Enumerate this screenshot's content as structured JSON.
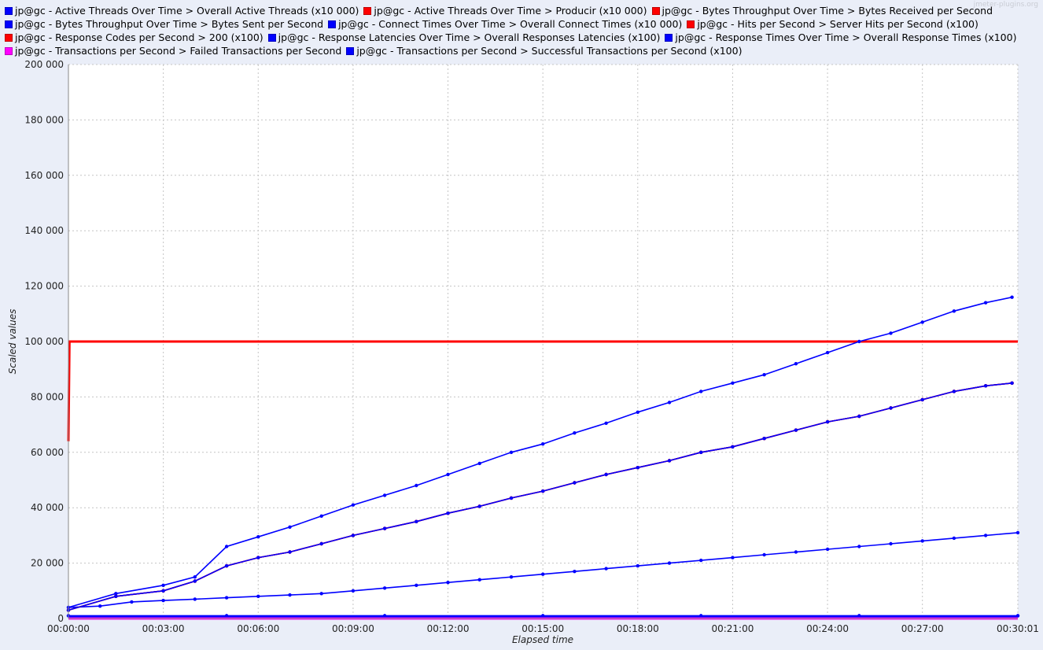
{
  "watermark": "jmeter-plugins.org",
  "chart_data": {
    "type": "line",
    "title": "",
    "xlabel": "Elapsed time",
    "ylabel": "Scaled values",
    "ylim": [
      0,
      200000
    ],
    "xlim_seconds": [
      0,
      1801
    ],
    "grid": true,
    "legend_position": "top",
    "y_ticks": [
      "0",
      "20 000",
      "40 000",
      "60 000",
      "80 000",
      "100 000",
      "120 000",
      "140 000",
      "160 000",
      "180 000",
      "200 000"
    ],
    "x_ticks": [
      "00:00:00",
      "00:03:00",
      "00:06:00",
      "00:09:00",
      "00:12:00",
      "00:15:00",
      "00:18:00",
      "00:21:00",
      "00:24:00",
      "00:27:00",
      "00:30:01"
    ],
    "x_tick_seconds": [
      0,
      180,
      360,
      540,
      720,
      900,
      1080,
      1260,
      1440,
      1620,
      1801
    ],
    "series": [
      {
        "name": "jp@gc - Active Threads Over Time > Overall Active Threads (x10 000)",
        "color": "#0000ff",
        "x": [
          0,
          60,
          120,
          180,
          240,
          300,
          360,
          420,
          480,
          540,
          600,
          660,
          720,
          780,
          840,
          900,
          960,
          1020,
          1080,
          1140,
          1200,
          1260,
          1320,
          1380,
          1440,
          1500,
          1560,
          1620,
          1680,
          1740,
          1801
        ],
        "y": [
          4000,
          4500,
          6000,
          6500,
          7000,
          7500,
          8000,
          8500,
          9000,
          10000,
          11000,
          12000,
          13000,
          14000,
          15000,
          16000,
          17000,
          18000,
          19000,
          20000,
          21000,
          22000,
          23000,
          24000,
          25000,
          26000,
          27000,
          28000,
          29000,
          30000,
          31000
        ]
      },
      {
        "name": "jp@gc - Active Threads Over Time > Producir (x10 000)",
        "color": "#ff0000",
        "x": [
          0,
          2,
          1801
        ],
        "y": [
          64000,
          100000,
          100000
        ]
      },
      {
        "name": "jp@gc - Bytes Throughput Over Time > Bytes Received per Second",
        "color": "#ff0000",
        "x": [
          0,
          90,
          180,
          240,
          300,
          360,
          420,
          480,
          540,
          600,
          660,
          720,
          780,
          840,
          900,
          960,
          1020,
          1080,
          1140,
          1200,
          1260,
          1320,
          1380,
          1440,
          1500,
          1560,
          1620,
          1680,
          1740,
          1790
        ],
        "y": [
          3000,
          8000,
          10000,
          13500,
          19000,
          22000,
          24000,
          27000,
          30000,
          32500,
          35000,
          38000,
          40500,
          43500,
          46000,
          49000,
          52000,
          54500,
          57000,
          60000,
          62000,
          65000,
          68000,
          71000,
          73000,
          76000,
          79000,
          82000,
          84000,
          85000
        ]
      },
      {
        "name": "jp@gc - Bytes Throughput Over Time > Bytes Sent per Second",
        "color": "#0000ff",
        "x": [
          0,
          90,
          180,
          240,
          300,
          360,
          420,
          480,
          540,
          600,
          660,
          720,
          780,
          840,
          900,
          960,
          1020,
          1080,
          1140,
          1200,
          1260,
          1320,
          1380,
          1440,
          1500,
          1560,
          1620,
          1680,
          1740,
          1790
        ],
        "y": [
          4000,
          9000,
          12000,
          15000,
          26000,
          29500,
          33000,
          37000,
          41000,
          44500,
          48000,
          52000,
          56000,
          60000,
          63000,
          67000,
          70500,
          74500,
          78000,
          82000,
          85000,
          88000,
          92000,
          96000,
          100000,
          103000,
          107000,
          111000,
          114000,
          116000
        ]
      },
      {
        "name": "jp@gc - Connect Times Over Time > Overall Connect Times (x10 000)",
        "color": "#0000ff",
        "x": [
          0,
          900,
          1801
        ],
        "y": [
          500,
          500,
          500
        ]
      },
      {
        "name": "jp@gc - Hits per Second > Server Hits per Second (x100)",
        "color": "#ff0000",
        "x": [
          0,
          90,
          180,
          240,
          300,
          360,
          420,
          480,
          540,
          600,
          660,
          720,
          780,
          840,
          900,
          960,
          1020,
          1080,
          1140,
          1200,
          1260,
          1320,
          1380,
          1440,
          1500,
          1560,
          1620,
          1680,
          1740,
          1790
        ],
        "y": [
          3000,
          8000,
          10000,
          13500,
          19000,
          22000,
          24000,
          27000,
          30000,
          32500,
          35000,
          38000,
          40500,
          43500,
          46000,
          49000,
          52000,
          54500,
          57000,
          60000,
          62000,
          65000,
          68000,
          71000,
          73000,
          76000,
          79000,
          82000,
          84000,
          85000
        ]
      },
      {
        "name": "jp@gc - Response Codes per Second > 200 (x100)",
        "color": "#ff0000",
        "x": [
          0,
          90,
          180,
          240,
          300,
          360,
          420,
          480,
          540,
          600,
          660,
          720,
          780,
          840,
          900,
          960,
          1020,
          1080,
          1140,
          1200,
          1260,
          1320,
          1380,
          1440,
          1500,
          1560,
          1620,
          1680,
          1740,
          1790
        ],
        "y": [
          3000,
          8000,
          10000,
          13500,
          19000,
          22000,
          24000,
          27000,
          30000,
          32500,
          35000,
          38000,
          40500,
          43500,
          46000,
          49000,
          52000,
          54500,
          57000,
          60000,
          62000,
          65000,
          68000,
          71000,
          73000,
          76000,
          79000,
          82000,
          84000,
          85000
        ]
      },
      {
        "name": "jp@gc - Response Latencies Over Time > Overall Responses Latencies (x100)",
        "color": "#0000ff",
        "x": [
          0,
          300,
          600,
          900,
          1200,
          1500,
          1801
        ],
        "y": [
          1000,
          1000,
          1000,
          1000,
          1000,
          1000,
          1000
        ]
      },
      {
        "name": "jp@gc - Response Times Over Time > Overall Response Times (x100)",
        "color": "#0000ff",
        "x": [
          0,
          300,
          600,
          900,
          1200,
          1500,
          1801
        ],
        "y": [
          1000,
          1000,
          1000,
          1000,
          1000,
          1000,
          1000
        ]
      },
      {
        "name": "jp@gc - Transactions per Second > Failed Transactions per Second",
        "color": "#ff00ff",
        "x": [
          0,
          1801
        ],
        "y": [
          0,
          0
        ]
      },
      {
        "name": "jp@gc - Transactions per Second > Successful Transactions per Second (x100)",
        "color": "#0000ff",
        "x": [
          0,
          90,
          180,
          240,
          300,
          360,
          420,
          480,
          540,
          600,
          660,
          720,
          780,
          840,
          900,
          960,
          1020,
          1080,
          1140,
          1200,
          1260,
          1320,
          1380,
          1440,
          1500,
          1560,
          1620,
          1680,
          1740,
          1790
        ],
        "y": [
          3000,
          8000,
          10000,
          13500,
          19000,
          22000,
          24000,
          27000,
          30000,
          32500,
          35000,
          38000,
          40500,
          43500,
          46000,
          49000,
          52000,
          54500,
          57000,
          60000,
          62000,
          65000,
          68000,
          71000,
          73000,
          76000,
          79000,
          82000,
          84000,
          85000
        ]
      }
    ]
  }
}
